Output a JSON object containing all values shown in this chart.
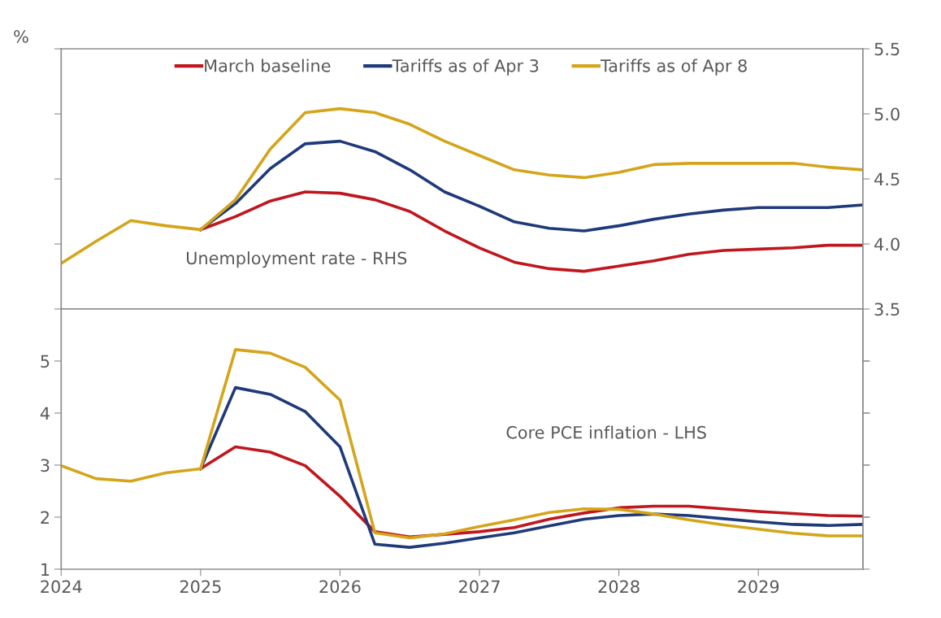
{
  "chart_data": [
    {
      "type": "line",
      "ylabel": "%",
      "annotations": [
        "Unemployment rate - RHS"
      ],
      "x": [
        2024.0,
        2024.25,
        2024.5,
        2024.75,
        2025.0,
        2025.25,
        2025.5,
        2025.75,
        2026.0,
        2026.25,
        2026.5,
        2026.75,
        2027.0,
        2027.25,
        2027.5,
        2027.75,
        2028.0,
        2028.25,
        2028.5,
        2028.75,
        2029.0,
        2029.25,
        2029.5,
        2029.75
      ],
      "series": [
        {
          "name": "March baseline",
          "color": "#c0161e",
          "axis": "y2",
          "values": [
            null,
            null,
            null,
            null,
            4.11,
            4.21,
            4.33,
            4.4,
            4.39,
            4.34,
            4.25,
            4.1,
            3.97,
            3.86,
            3.81,
            3.79,
            3.83,
            3.87,
            3.92,
            3.95,
            3.96,
            3.97,
            3.99,
            3.99
          ]
        },
        {
          "name": "Tariffs as of Apr 3",
          "color": "#1f3a7a",
          "axis": "y2",
          "values": [
            null,
            null,
            null,
            null,
            4.11,
            4.31,
            4.58,
            4.77,
            4.79,
            4.71,
            4.57,
            4.4,
            4.29,
            4.17,
            4.12,
            4.1,
            4.14,
            4.19,
            4.23,
            4.26,
            4.28,
            4.28,
            4.28,
            4.3
          ]
        },
        {
          "name": "Tariffs as of Apr 8",
          "color": "#d4a51a",
          "axis": "y2",
          "values": [
            3.85,
            4.02,
            4.18,
            4.14,
            4.11,
            4.34,
            4.73,
            5.01,
            5.04,
            5.01,
            4.92,
            4.79,
            4.68,
            4.57,
            4.53,
            4.51,
            4.55,
            4.61,
            4.62,
            4.62,
            4.62,
            4.62,
            4.59,
            4.57
          ]
        }
      ],
      "xlim": [
        2024,
        2029.75
      ],
      "y2lim": [
        3.5,
        5.5
      ],
      "y2ticks": [
        {
          "value": 3.5,
          "label": "3.5"
        },
        {
          "value": 4.0,
          "label": "4.0"
        },
        {
          "value": 4.5,
          "label": "4.5"
        },
        {
          "value": 5.0,
          "label": "5.0"
        },
        {
          "value": 5.5,
          "label": "5.5"
        }
      ],
      "tick_labels": "y",
      "legend": "top",
      "grid": false,
      "marker": "none",
      "line_style": "solid"
    },
    {
      "type": "line",
      "annotations": [
        "Core PCE inflation - LHS"
      ],
      "x": [
        2024.0,
        2024.25,
        2024.5,
        2024.75,
        2025.0,
        2025.25,
        2025.5,
        2025.75,
        2026.0,
        2026.25,
        2026.5,
        2026.75,
        2027.0,
        2027.25,
        2027.5,
        2027.75,
        2028.0,
        2028.25,
        2028.5,
        2028.75,
        2029.0,
        2029.25,
        2029.5,
        2029.75
      ],
      "series": [
        {
          "color": "#c0161e",
          "values": [
            null,
            null,
            null,
            null,
            2.93,
            3.35,
            3.25,
            2.99,
            2.4,
            1.72,
            1.62,
            1.67,
            1.72,
            1.8,
            1.96,
            2.08,
            2.18,
            2.21,
            2.21,
            2.16,
            2.11,
            2.07,
            2.03,
            2.02
          ]
        },
        {
          "color": "#1f3a7a",
          "values": [
            null,
            null,
            null,
            null,
            2.93,
            4.49,
            4.36,
            4.03,
            3.35,
            1.48,
            1.42,
            1.5,
            1.6,
            1.7,
            1.83,
            1.96,
            2.03,
            2.06,
            2.03,
            1.97,
            1.91,
            1.86,
            1.84,
            1.86
          ]
        },
        {
          "color": "#d4a51a",
          "values": [
            2.99,
            2.74,
            2.69,
            2.85,
            2.93,
            5.22,
            5.15,
            4.88,
            4.25,
            1.7,
            1.6,
            1.68,
            1.82,
            1.95,
            2.09,
            2.16,
            2.15,
            2.06,
            1.95,
            1.85,
            1.77,
            1.69,
            1.64,
            1.64
          ]
        }
      ],
      "xlim": [
        2024,
        2029.75
      ],
      "xticks": [
        2024,
        2025,
        2026,
        2027,
        2028,
        2029
      ],
      "ylim": [
        1,
        6
      ],
      "yticks": [
        1,
        2,
        3,
        4,
        5
      ],
      "grid": false,
      "marker": "none",
      "line_style": "solid"
    }
  ]
}
